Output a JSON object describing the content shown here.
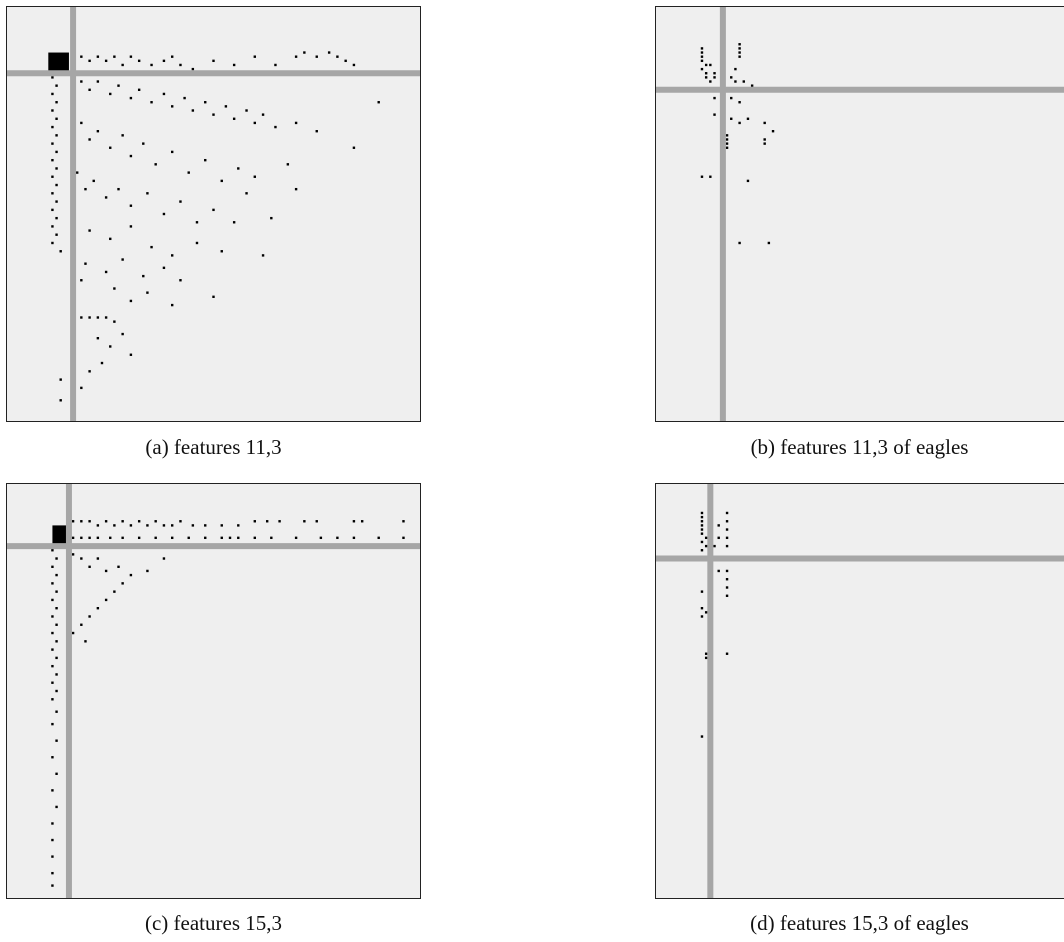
{
  "figure": {
    "colors": {
      "background": "#efefef",
      "crosshair": "#a6a6a6",
      "points": "#000000",
      "frame": "#222222"
    }
  },
  "chart_data": [
    {
      "type": "scatter",
      "caption": "(a) features 11,3",
      "title": "",
      "xlabel": "",
      "ylabel": "",
      "axes_visible": false,
      "grid": false,
      "xlim": [
        0,
        1
      ],
      "ylim": [
        0,
        1
      ],
      "crosshair": {
        "x": 0.16,
        "y": 0.84
      },
      "dense_block": {
        "x": [
          0.1,
          0.15
        ],
        "y": [
          0.84,
          0.89
        ]
      },
      "points": [
        [
          0.16,
          0.88
        ],
        [
          0.18,
          0.88
        ],
        [
          0.2,
          0.87
        ],
        [
          0.22,
          0.88
        ],
        [
          0.24,
          0.87
        ],
        [
          0.26,
          0.88
        ],
        [
          0.28,
          0.86
        ],
        [
          0.3,
          0.88
        ],
        [
          0.32,
          0.87
        ],
        [
          0.35,
          0.86
        ],
        [
          0.38,
          0.87
        ],
        [
          0.4,
          0.88
        ],
        [
          0.42,
          0.86
        ],
        [
          0.45,
          0.85
        ],
        [
          0.5,
          0.87
        ],
        [
          0.55,
          0.86
        ],
        [
          0.6,
          0.88
        ],
        [
          0.65,
          0.86
        ],
        [
          0.7,
          0.88
        ],
        [
          0.72,
          0.89
        ],
        [
          0.75,
          0.88
        ],
        [
          0.78,
          0.89
        ],
        [
          0.8,
          0.88
        ],
        [
          0.82,
          0.87
        ],
        [
          0.84,
          0.86
        ],
        [
          0.11,
          0.83
        ],
        [
          0.12,
          0.81
        ],
        [
          0.11,
          0.79
        ],
        [
          0.12,
          0.77
        ],
        [
          0.11,
          0.75
        ],
        [
          0.12,
          0.73
        ],
        [
          0.11,
          0.71
        ],
        [
          0.12,
          0.69
        ],
        [
          0.11,
          0.67
        ],
        [
          0.12,
          0.65
        ],
        [
          0.11,
          0.63
        ],
        [
          0.12,
          0.61
        ],
        [
          0.11,
          0.59
        ],
        [
          0.12,
          0.57
        ],
        [
          0.11,
          0.55
        ],
        [
          0.12,
          0.53
        ],
        [
          0.11,
          0.51
        ],
        [
          0.12,
          0.49
        ],
        [
          0.11,
          0.47
        ],
        [
          0.12,
          0.45
        ],
        [
          0.11,
          0.43
        ],
        [
          0.13,
          0.41
        ],
        [
          0.18,
          0.82
        ],
        [
          0.2,
          0.8
        ],
        [
          0.22,
          0.82
        ],
        [
          0.25,
          0.79
        ],
        [
          0.27,
          0.81
        ],
        [
          0.3,
          0.78
        ],
        [
          0.32,
          0.8
        ],
        [
          0.35,
          0.77
        ],
        [
          0.38,
          0.79
        ],
        [
          0.4,
          0.76
        ],
        [
          0.43,
          0.78
        ],
        [
          0.45,
          0.75
        ],
        [
          0.48,
          0.77
        ],
        [
          0.5,
          0.74
        ],
        [
          0.53,
          0.76
        ],
        [
          0.55,
          0.73
        ],
        [
          0.58,
          0.75
        ],
        [
          0.6,
          0.72
        ],
        [
          0.62,
          0.74
        ],
        [
          0.65,
          0.71
        ],
        [
          0.7,
          0.72
        ],
        [
          0.75,
          0.7
        ],
        [
          0.9,
          0.77
        ],
        [
          0.84,
          0.66
        ],
        [
          0.18,
          0.72
        ],
        [
          0.2,
          0.68
        ],
        [
          0.22,
          0.7
        ],
        [
          0.25,
          0.66
        ],
        [
          0.28,
          0.69
        ],
        [
          0.3,
          0.64
        ],
        [
          0.33,
          0.67
        ],
        [
          0.36,
          0.62
        ],
        [
          0.4,
          0.65
        ],
        [
          0.44,
          0.6
        ],
        [
          0.48,
          0.63
        ],
        [
          0.52,
          0.58
        ],
        [
          0.56,
          0.61
        ],
        [
          0.6,
          0.59
        ],
        [
          0.68,
          0.62
        ],
        [
          0.58,
          0.55
        ],
        [
          0.7,
          0.56
        ],
        [
          0.17,
          0.6
        ],
        [
          0.19,
          0.56
        ],
        [
          0.21,
          0.58
        ],
        [
          0.24,
          0.54
        ],
        [
          0.27,
          0.56
        ],
        [
          0.3,
          0.52
        ],
        [
          0.34,
          0.55
        ],
        [
          0.38,
          0.5
        ],
        [
          0.42,
          0.53
        ],
        [
          0.46,
          0.48
        ],
        [
          0.5,
          0.51
        ],
        [
          0.55,
          0.48
        ],
        [
          0.64,
          0.49
        ],
        [
          0.2,
          0.46
        ],
        [
          0.25,
          0.44
        ],
        [
          0.3,
          0.47
        ],
        [
          0.35,
          0.42
        ],
        [
          0.4,
          0.4
        ],
        [
          0.46,
          0.43
        ],
        [
          0.52,
          0.41
        ],
        [
          0.62,
          0.4
        ],
        [
          0.19,
          0.38
        ],
        [
          0.24,
          0.36
        ],
        [
          0.28,
          0.39
        ],
        [
          0.33,
          0.35
        ],
        [
          0.38,
          0.37
        ],
        [
          0.42,
          0.34
        ],
        [
          0.18,
          0.34
        ],
        [
          0.26,
          0.32
        ],
        [
          0.3,
          0.29
        ],
        [
          0.34,
          0.31
        ],
        [
          0.4,
          0.28
        ],
        [
          0.5,
          0.3
        ],
        [
          0.18,
          0.25
        ],
        [
          0.2,
          0.25
        ],
        [
          0.22,
          0.25
        ],
        [
          0.24,
          0.25
        ],
        [
          0.26,
          0.24
        ],
        [
          0.22,
          0.2
        ],
        [
          0.25,
          0.18
        ],
        [
          0.28,
          0.21
        ],
        [
          0.3,
          0.16
        ],
        [
          0.23,
          0.14
        ],
        [
          0.2,
          0.12
        ],
        [
          0.13,
          0.1
        ],
        [
          0.16,
          0.09
        ],
        [
          0.18,
          0.08
        ],
        [
          0.13,
          0.05
        ]
      ]
    },
    {
      "type": "scatter",
      "caption": "(b) features 11,3 of eagles",
      "title": "",
      "xlabel": "",
      "ylabel": "",
      "axes_visible": false,
      "grid": false,
      "xlim": [
        0,
        1
      ],
      "ylim": [
        0,
        1
      ],
      "crosshair": {
        "x": 0.16,
        "y": 0.8
      },
      "points": [
        [
          0.11,
          0.9
        ],
        [
          0.11,
          0.89
        ],
        [
          0.11,
          0.88
        ],
        [
          0.11,
          0.87
        ],
        [
          0.12,
          0.86
        ],
        [
          0.11,
          0.85
        ],
        [
          0.12,
          0.84
        ],
        [
          0.13,
          0.86
        ],
        [
          0.14,
          0.84
        ],
        [
          0.12,
          0.83
        ],
        [
          0.13,
          0.82
        ],
        [
          0.14,
          0.83
        ],
        [
          0.2,
          0.91
        ],
        [
          0.2,
          0.9
        ],
        [
          0.2,
          0.89
        ],
        [
          0.2,
          0.88
        ],
        [
          0.19,
          0.85
        ],
        [
          0.18,
          0.83
        ],
        [
          0.19,
          0.82
        ],
        [
          0.21,
          0.82
        ],
        [
          0.23,
          0.81
        ],
        [
          0.14,
          0.78
        ],
        [
          0.16,
          0.76
        ],
        [
          0.18,
          0.78
        ],
        [
          0.14,
          0.74
        ],
        [
          0.2,
          0.77
        ],
        [
          0.18,
          0.73
        ],
        [
          0.2,
          0.72
        ],
        [
          0.22,
          0.73
        ],
        [
          0.26,
          0.72
        ],
        [
          0.28,
          0.7
        ],
        [
          0.26,
          0.68
        ],
        [
          0.17,
          0.69
        ],
        [
          0.17,
          0.68
        ],
        [
          0.17,
          0.67
        ],
        [
          0.17,
          0.66
        ],
        [
          0.26,
          0.67
        ],
        [
          0.11,
          0.59
        ],
        [
          0.13,
          0.59
        ],
        [
          0.22,
          0.58
        ],
        [
          0.2,
          0.43
        ],
        [
          0.27,
          0.43
        ]
      ]
    },
    {
      "type": "scatter",
      "caption": "(c) features 15,3",
      "title": "",
      "xlabel": "",
      "ylabel": "",
      "axes_visible": false,
      "grid": false,
      "xlim": [
        0,
        1
      ],
      "ylim": [
        0,
        1
      ],
      "crosshair": {
        "x": 0.15,
        "y": 0.85
      },
      "dense_block": {
        "x": [
          0.11,
          0.15
        ],
        "y": [
          0.85,
          0.9
        ]
      },
      "points": [
        [
          0.16,
          0.91
        ],
        [
          0.18,
          0.91
        ],
        [
          0.2,
          0.91
        ],
        [
          0.22,
          0.9
        ],
        [
          0.24,
          0.91
        ],
        [
          0.26,
          0.9
        ],
        [
          0.28,
          0.91
        ],
        [
          0.3,
          0.9
        ],
        [
          0.32,
          0.91
        ],
        [
          0.34,
          0.9
        ],
        [
          0.36,
          0.91
        ],
        [
          0.38,
          0.9
        ],
        [
          0.4,
          0.9
        ],
        [
          0.42,
          0.91
        ],
        [
          0.45,
          0.9
        ],
        [
          0.48,
          0.9
        ],
        [
          0.52,
          0.9
        ],
        [
          0.56,
          0.9
        ],
        [
          0.6,
          0.91
        ],
        [
          0.63,
          0.91
        ],
        [
          0.66,
          0.91
        ],
        [
          0.72,
          0.91
        ],
        [
          0.75,
          0.91
        ],
        [
          0.84,
          0.91
        ],
        [
          0.86,
          0.91
        ],
        [
          0.96,
          0.91
        ],
        [
          0.16,
          0.87
        ],
        [
          0.18,
          0.87
        ],
        [
          0.2,
          0.87
        ],
        [
          0.22,
          0.87
        ],
        [
          0.25,
          0.87
        ],
        [
          0.28,
          0.87
        ],
        [
          0.32,
          0.87
        ],
        [
          0.36,
          0.87
        ],
        [
          0.4,
          0.87
        ],
        [
          0.44,
          0.87
        ],
        [
          0.48,
          0.87
        ],
        [
          0.52,
          0.87
        ],
        [
          0.54,
          0.87
        ],
        [
          0.56,
          0.87
        ],
        [
          0.6,
          0.87
        ],
        [
          0.64,
          0.87
        ],
        [
          0.7,
          0.87
        ],
        [
          0.76,
          0.87
        ],
        [
          0.8,
          0.87
        ],
        [
          0.84,
          0.87
        ],
        [
          0.9,
          0.87
        ],
        [
          0.96,
          0.87
        ],
        [
          0.16,
          0.83
        ],
        [
          0.18,
          0.82
        ],
        [
          0.2,
          0.8
        ],
        [
          0.22,
          0.82
        ],
        [
          0.24,
          0.79
        ],
        [
          0.27,
          0.8
        ],
        [
          0.3,
          0.78
        ],
        [
          0.34,
          0.79
        ],
        [
          0.38,
          0.82
        ],
        [
          0.28,
          0.76
        ],
        [
          0.26,
          0.74
        ],
        [
          0.24,
          0.72
        ],
        [
          0.22,
          0.7
        ],
        [
          0.2,
          0.68
        ],
        [
          0.18,
          0.66
        ],
        [
          0.16,
          0.64
        ],
        [
          0.19,
          0.62
        ],
        [
          0.11,
          0.84
        ],
        [
          0.12,
          0.82
        ],
        [
          0.11,
          0.8
        ],
        [
          0.12,
          0.78
        ],
        [
          0.11,
          0.76
        ],
        [
          0.12,
          0.74
        ],
        [
          0.11,
          0.72
        ],
        [
          0.12,
          0.7
        ],
        [
          0.11,
          0.68
        ],
        [
          0.12,
          0.66
        ],
        [
          0.11,
          0.64
        ],
        [
          0.12,
          0.62
        ],
        [
          0.11,
          0.6
        ],
        [
          0.12,
          0.58
        ],
        [
          0.11,
          0.56
        ],
        [
          0.12,
          0.54
        ],
        [
          0.11,
          0.52
        ],
        [
          0.12,
          0.5
        ],
        [
          0.11,
          0.48
        ],
        [
          0.12,
          0.45
        ],
        [
          0.11,
          0.42
        ],
        [
          0.12,
          0.38
        ],
        [
          0.11,
          0.34
        ],
        [
          0.12,
          0.3
        ],
        [
          0.11,
          0.26
        ],
        [
          0.12,
          0.22
        ],
        [
          0.11,
          0.18
        ],
        [
          0.11,
          0.14
        ],
        [
          0.11,
          0.1
        ],
        [
          0.11,
          0.06
        ],
        [
          0.11,
          0.03
        ]
      ]
    },
    {
      "type": "scatter",
      "caption": "(d) features 15,3 of eagles",
      "title": "",
      "xlabel": "",
      "ylabel": "",
      "axes_visible": false,
      "grid": false,
      "xlim": [
        0,
        1
      ],
      "ylim": [
        0,
        1
      ],
      "crosshair": {
        "x": 0.13,
        "y": 0.82
      },
      "points": [
        [
          0.11,
          0.93
        ],
        [
          0.11,
          0.92
        ],
        [
          0.11,
          0.91
        ],
        [
          0.11,
          0.9
        ],
        [
          0.11,
          0.89
        ],
        [
          0.11,
          0.88
        ],
        [
          0.12,
          0.87
        ],
        [
          0.11,
          0.86
        ],
        [
          0.12,
          0.85
        ],
        [
          0.11,
          0.84
        ],
        [
          0.17,
          0.93
        ],
        [
          0.17,
          0.91
        ],
        [
          0.17,
          0.89
        ],
        [
          0.17,
          0.87
        ],
        [
          0.17,
          0.85
        ],
        [
          0.15,
          0.9
        ],
        [
          0.15,
          0.87
        ],
        [
          0.14,
          0.85
        ],
        [
          0.13,
          0.8
        ],
        [
          0.15,
          0.79
        ],
        [
          0.17,
          0.79
        ],
        [
          0.17,
          0.77
        ],
        [
          0.17,
          0.75
        ],
        [
          0.17,
          0.73
        ],
        [
          0.13,
          0.76
        ],
        [
          0.11,
          0.74
        ],
        [
          0.11,
          0.7
        ],
        [
          0.12,
          0.69
        ],
        [
          0.11,
          0.68
        ],
        [
          0.12,
          0.59
        ],
        [
          0.12,
          0.58
        ],
        [
          0.17,
          0.59
        ],
        [
          0.11,
          0.39
        ]
      ]
    }
  ]
}
